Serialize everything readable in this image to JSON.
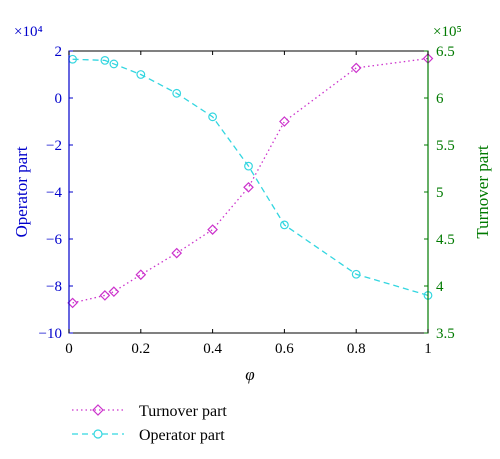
{
  "chart_data": {
    "type": "line",
    "x": [
      0.01,
      0.1,
      0.125,
      0.2,
      0.3,
      0.4,
      0.5,
      0.6,
      0.8,
      1.0
    ],
    "xlabel": "φ",
    "xlim": [
      0,
      1
    ],
    "xticks": [
      0,
      0.2,
      0.4,
      0.6,
      0.8,
      1
    ],
    "xtick_labels": [
      "0",
      "0.2",
      "0.4",
      "0.6",
      "0.8",
      "1"
    ],
    "left_axis": {
      "label": "Operator part",
      "multiplier": "×10⁴",
      "ylim": [
        -10,
        2
      ],
      "ticks": [
        2,
        0,
        -2,
        -4,
        -6,
        -8,
        -10
      ],
      "tick_labels": [
        "2",
        "0",
        "−2",
        "−4",
        "−6",
        "−8",
        "−10"
      ],
      "color": "#0000cc"
    },
    "right_axis": {
      "label": "Turnover part",
      "multiplier": "×10⁵",
      "ylim": [
        3.5,
        6.5
      ],
      "ticks": [
        6.5,
        6,
        5.5,
        5,
        4.5,
        4,
        3.5
      ],
      "tick_labels": [
        "6.5",
        "6",
        "5.5",
        "5",
        "4.5",
        "4",
        "3.5"
      ],
      "color": "#007a00"
    },
    "series": [
      {
        "name": "Turnover part",
        "axis": "right",
        "color": "#cc33cc",
        "linestyle": "dotted",
        "marker": "diamond",
        "values": [
          3.82,
          3.9,
          3.94,
          4.12,
          4.35,
          4.6,
          5.05,
          5.75,
          6.32,
          6.42
        ]
      },
      {
        "name": "Operator part",
        "axis": "left",
        "color": "#33d6e0",
        "linestyle": "dashed",
        "marker": "circle",
        "values": [
          1.65,
          1.6,
          1.45,
          1.0,
          0.2,
          -0.8,
          -2.9,
          -5.4,
          -7.5,
          -8.4
        ]
      }
    ],
    "grid": false,
    "legend_position": "below"
  }
}
